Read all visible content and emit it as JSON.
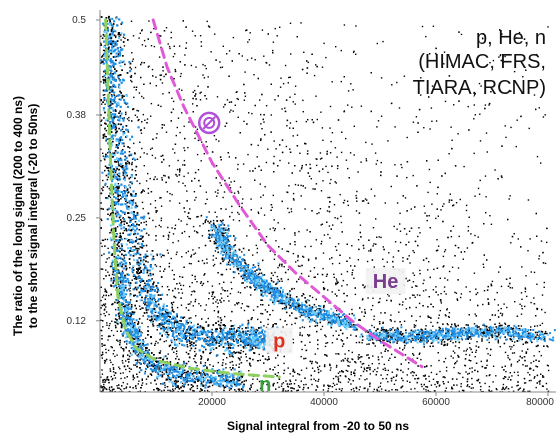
{
  "chart_data": {
    "type": "scatter",
    "title": "",
    "xlabel": "Signal integral from -20 to 50 ns",
    "ylabel_lines": [
      "The ratio of the long signal (200 to 400 ns)",
      "to the short signal integral (-20 to 50ns)"
    ],
    "xlim": [
      0,
      80000
    ],
    "ylim": [
      0.03,
      0.5
    ],
    "x_ticks": [
      20000,
      40000,
      60000,
      80000
    ],
    "x_tick_labels": [
      "20000",
      "40000",
      "60000",
      "80000"
    ],
    "y_ticks": [
      0.12,
      0.25,
      0.38,
      0.5
    ],
    "y_tick_labels": [
      "0.12",
      "0.25",
      "0.38",
      "0.5"
    ],
    "grid": false,
    "annotation_lines": [
      "p, He, n",
      "(HIMAC, FRS,",
      "TIARA, RCNP)"
    ],
    "particle_labels": [
      {
        "text": "He",
        "x": 51000,
        "y": 0.165,
        "color": "#7a3c8c"
      },
      {
        "text": "p",
        "x": 32000,
        "y": 0.09,
        "color": "#e0301e"
      },
      {
        "text": "n",
        "x": 29500,
        "y": 0.035,
        "color": "#3aa040"
      }
    ],
    "special_marker": {
      "x": 19500,
      "y": 0.37,
      "color": "#b04fd8"
    },
    "separation_curves": [
      {
        "name": "He/p boundary",
        "color": "#e05ad8",
        "style": "dashed",
        "points": [
          [
            9500,
            0.5
          ],
          [
            12000,
            0.44
          ],
          [
            15000,
            0.39
          ],
          [
            20000,
            0.32
          ],
          [
            25000,
            0.265
          ],
          [
            30000,
            0.215
          ],
          [
            35000,
            0.18
          ],
          [
            40000,
            0.15
          ],
          [
            45000,
            0.12
          ],
          [
            50000,
            0.095
          ],
          [
            55000,
            0.073
          ],
          [
            57500,
            0.062
          ]
        ]
      },
      {
        "name": "n/p boundary",
        "color": "#8fd060",
        "style": "dashed",
        "points": [
          [
            1000,
            0.5
          ],
          [
            1500,
            0.4
          ],
          [
            2000,
            0.3
          ],
          [
            2500,
            0.22
          ],
          [
            3200,
            0.15
          ],
          [
            4500,
            0.11
          ],
          [
            6500,
            0.085
          ],
          [
            10000,
            0.07
          ],
          [
            16000,
            0.06
          ],
          [
            24000,
            0.053
          ],
          [
            32000,
            0.049
          ]
        ]
      }
    ],
    "density_bands": [
      {
        "name": "neutron band",
        "points": [
          [
            1200,
            0.5
          ],
          [
            2000,
            0.35
          ],
          [
            3000,
            0.2
          ],
          [
            4500,
            0.12
          ],
          [
            8000,
            0.07
          ],
          [
            15000,
            0.05
          ],
          [
            25000,
            0.045
          ]
        ]
      },
      {
        "name": "proton band",
        "points": [
          [
            2000,
            0.5
          ],
          [
            4000,
            0.32
          ],
          [
            6000,
            0.22
          ],
          [
            9000,
            0.14
          ],
          [
            14000,
            0.105
          ],
          [
            20000,
            0.1
          ],
          [
            26000,
            0.098
          ],
          [
            30000,
            0.096
          ]
        ]
      },
      {
        "name": "helium band",
        "points": [
          [
            20500,
            0.24
          ],
          [
            23000,
            0.205
          ],
          [
            27000,
            0.175
          ],
          [
            32000,
            0.15
          ],
          [
            38000,
            0.13
          ],
          [
            45000,
            0.115
          ]
        ]
      },
      {
        "name": "high-energy tail",
        "points": [
          [
            48000,
            0.103
          ],
          [
            55000,
            0.1
          ],
          [
            62000,
            0.104
          ],
          [
            70000,
            0.108
          ],
          [
            79000,
            0.1
          ]
        ]
      }
    ],
    "point_colors": {
      "sparse": "#000000",
      "dense": "#1f8fe6",
      "core": "#6fd0ff"
    }
  }
}
